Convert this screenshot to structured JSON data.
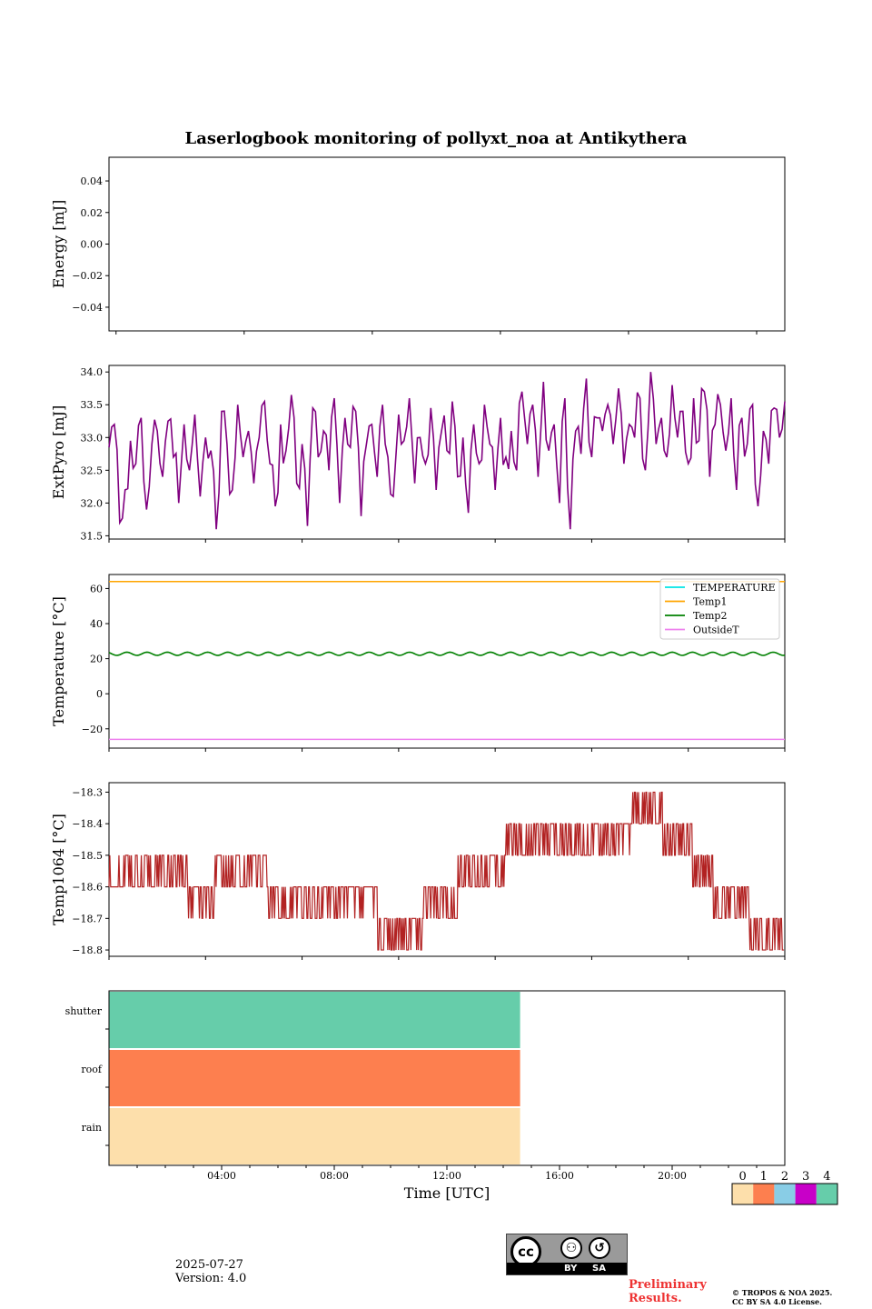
{
  "title": "Laserlogbook monitoring of pollyxt_noa at Antikythera",
  "chart_data": [
    {
      "type": "line",
      "ylabel": "Energy [mJ]",
      "ylim": [
        -0.055,
        0.055
      ],
      "yticks": [
        "0.04",
        "0.02",
        "0.00",
        "−0.02",
        "−0.04"
      ],
      "ytick_values": [
        0.04,
        0.02,
        0.0,
        -0.02,
        -0.04
      ],
      "series": []
    },
    {
      "type": "line",
      "ylabel": "ExtPyro [mJ]",
      "ylim": [
        31.45,
        34.1
      ],
      "yticks": [
        "34.0",
        "33.5",
        "33.0",
        "32.5",
        "32.0",
        "31.5"
      ],
      "ytick_values": [
        34.0,
        33.5,
        33.0,
        32.5,
        32.0,
        31.5
      ],
      "xrange_hours": [
        0.25,
        23.0
      ],
      "series": [
        {
          "color": "#800080",
          "values": [
            32.85,
            33.2,
            31.7,
            32.2,
            32.95,
            32.6,
            33.3,
            31.9,
            32.9,
            33.1,
            32.4,
            33.25,
            32.7,
            32.0,
            33.2,
            32.5,
            33.35,
            32.1,
            33.0,
            32.8,
            31.6,
            33.4,
            32.9,
            32.2,
            33.5,
            32.7,
            33.1,
            32.3,
            33.0,
            33.55,
            32.6,
            31.95,
            33.2,
            32.8,
            33.65,
            32.3,
            32.9,
            31.65,
            33.45,
            32.7,
            33.1,
            32.5,
            33.6,
            32.0,
            33.3,
            32.85,
            33.4,
            31.8,
            32.9,
            33.2,
            32.4,
            33.5,
            32.7,
            32.1,
            33.35,
            32.95,
            33.6,
            32.3,
            33.0,
            32.6,
            33.45,
            32.2,
            33.1,
            32.8,
            33.55,
            32.4,
            33.0,
            31.85,
            33.2,
            32.6,
            33.5,
            32.9,
            32.2,
            33.3,
            32.7,
            33.1,
            32.5,
            33.7,
            32.9,
            33.5,
            32.4,
            33.85,
            32.8,
            33.2,
            32.0,
            33.6,
            31.6,
            33.1,
            32.75,
            33.9,
            32.7,
            33.3,
            33.1,
            33.5,
            32.9,
            33.75,
            32.6,
            33.2,
            33.0,
            33.6,
            32.5,
            34.0,
            32.9,
            33.3,
            32.7,
            33.8,
            33.0,
            33.4,
            32.6,
            33.6,
            32.95,
            33.7,
            32.4,
            33.2,
            33.5,
            32.8,
            33.6,
            32.2,
            33.3,
            32.9,
            33.5,
            31.95,
            33.1,
            32.6,
            33.45,
            33.0,
            33.55
          ]
        }
      ]
    },
    {
      "type": "line",
      "ylabel": "Temperature [°C]",
      "ylim": [
        -31,
        68
      ],
      "yticks": [
        "60",
        "40",
        "20",
        "0",
        "−20"
      ],
      "ytick_values": [
        60,
        40,
        20,
        0,
        -20
      ],
      "xrange_hours": [
        0.25,
        23.0
      ],
      "legend_placement": "upper-right",
      "series": [
        {
          "name": "TEMPERATURE",
          "color": "#00e5e5",
          "values": []
        },
        {
          "name": "Temp1",
          "color": "#ffa500",
          "constant": 64
        },
        {
          "name": "Temp2",
          "color": "#008000",
          "mean": 22.8,
          "amplitude": 0.9
        },
        {
          "name": "OutsideT",
          "color": "#ee82ee",
          "constant": -26
        }
      ]
    },
    {
      "type": "line",
      "ylabel": "Temp1064 [°C]",
      "ylim": [
        -18.82,
        -18.27
      ],
      "yticks": [
        "−18.3",
        "−18.4",
        "−18.5",
        "−18.6",
        "−18.7",
        "−18.8"
      ],
      "ytick_values": [
        -18.3,
        -18.4,
        -18.5,
        -18.6,
        -18.7,
        -18.8
      ],
      "xrange_hours": [
        0.25,
        23.0
      ],
      "series": [
        {
          "color": "#b22222",
          "segments": [
            {
              "start": 0.25,
              "end": 2.9,
              "values": [
                -18.6,
                -18.5
              ]
            },
            {
              "start": 2.9,
              "end": 3.8,
              "values": [
                -18.6,
                -18.7
              ]
            },
            {
              "start": 3.8,
              "end": 5.0,
              "values": [
                -18.6,
                -18.5
              ]
            },
            {
              "start": 5.0,
              "end": 5.6,
              "values": [
                -18.5,
                -18.6
              ]
            },
            {
              "start": 5.6,
              "end": 7.5,
              "values": [
                -18.6,
                -18.7
              ]
            },
            {
              "start": 7.5,
              "end": 9.3,
              "values": [
                -18.6,
                -18.7
              ]
            },
            {
              "start": 9.3,
              "end": 10.8,
              "values": [
                -18.7,
                -18.8
              ]
            },
            {
              "start": 10.8,
              "end": 12.0,
              "values": [
                -18.7,
                -18.6
              ]
            },
            {
              "start": 12.0,
              "end": 13.6,
              "values": [
                -18.6,
                -18.5
              ]
            },
            {
              "start": 13.6,
              "end": 15.0,
              "values": [
                -18.5,
                -18.4
              ]
            },
            {
              "start": 15.0,
              "end": 16.5,
              "values": [
                -18.4,
                -18.5
              ]
            },
            {
              "start": 16.5,
              "end": 17.8,
              "values": [
                -18.4,
                -18.5
              ]
            },
            {
              "start": 17.8,
              "end": 18.9,
              "values": [
                -18.4,
                -18.3
              ]
            },
            {
              "start": 18.9,
              "end": 19.9,
              "values": [
                -18.4,
                -18.5
              ]
            },
            {
              "start": 19.9,
              "end": 20.6,
              "values": [
                -18.5,
                -18.6
              ]
            },
            {
              "start": 20.6,
              "end": 21.8,
              "values": [
                -18.6,
                -18.7
              ]
            },
            {
              "start": 21.8,
              "end": 23.0,
              "values": [
                -18.7,
                -18.8
              ]
            }
          ]
        }
      ]
    },
    {
      "type": "heatmap",
      "rows": [
        "shutter",
        "roof",
        "rain"
      ],
      "row_states": [
        4,
        1,
        0
      ],
      "coverage_end_hour": 14.6,
      "xlabel": "Time [UTC]",
      "xticks": [
        "04:00",
        "08:00",
        "12:00",
        "16:00",
        "20:00"
      ],
      "xtick_hours": [
        4,
        8,
        12,
        16,
        20
      ],
      "colorbar": {
        "ticks": [
          "0",
          "1",
          "2",
          "3",
          "4"
        ],
        "colors": [
          "#fddfab",
          "#fd7f4f",
          "#89cde6",
          "#c800c8",
          "#66cdaa"
        ]
      }
    }
  ],
  "footer": {
    "date": "2025-07-27",
    "version": "Version: 4.0",
    "cc_labels": [
      "BY",
      "SA"
    ],
    "preliminary": "Preliminary Results.",
    "copyright_line1": "© TROPOS & NOA 2025.",
    "copyright_line2": "CC BY SA 4.0 License."
  }
}
